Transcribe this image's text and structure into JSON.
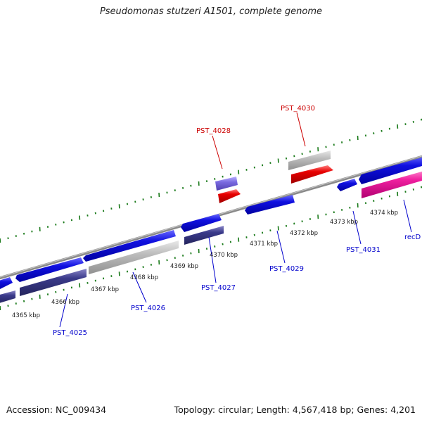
{
  "title": "Pseudomonas stutzeri A1501, complete genome",
  "footer": {
    "accession": "Accession: NC_009434",
    "summary": "Topology: circular; Length: 4,567,418 bp; Genes: 4,201"
  },
  "colors": {
    "backbone": "#8a8a8a",
    "tick": "#1a7a1a",
    "gene_forward": "#1010e0",
    "gene_reverse": "#3a3a8a",
    "gene_light_purple": "#7a6ae0",
    "gene_gray": "#b8b8b8",
    "gene_red": "#e80000",
    "gene_pink": "#f020a0",
    "label_blue": "#0000cc",
    "label_red": "#cc0000"
  },
  "ruler": {
    "labels": [
      "4365 kbp",
      "4366 kbp",
      "4367 kbp",
      "4368 kbp",
      "4369 kbp",
      "4370 kbp",
      "4371 kbp",
      "4372 kbp",
      "4373 kbp",
      "4374 kbp"
    ]
  },
  "gene_labels": [
    {
      "id": "PST_4025",
      "text": "PST_4025",
      "tone": "blue"
    },
    {
      "id": "PST_4026",
      "text": "PST_4026",
      "tone": "blue"
    },
    {
      "id": "PST_4027",
      "text": "PST_4027",
      "tone": "blue"
    },
    {
      "id": "PST_4028",
      "text": "PST_4028",
      "tone": "red"
    },
    {
      "id": "PST_4029",
      "text": "PST_4029",
      "tone": "blue"
    },
    {
      "id": "PST_4030",
      "text": "PST_4030",
      "tone": "red"
    },
    {
      "id": "PST_4031",
      "text": "PST_4031",
      "tone": "blue"
    },
    {
      "id": "recD",
      "text": "recD",
      "tone": "blue"
    }
  ]
}
